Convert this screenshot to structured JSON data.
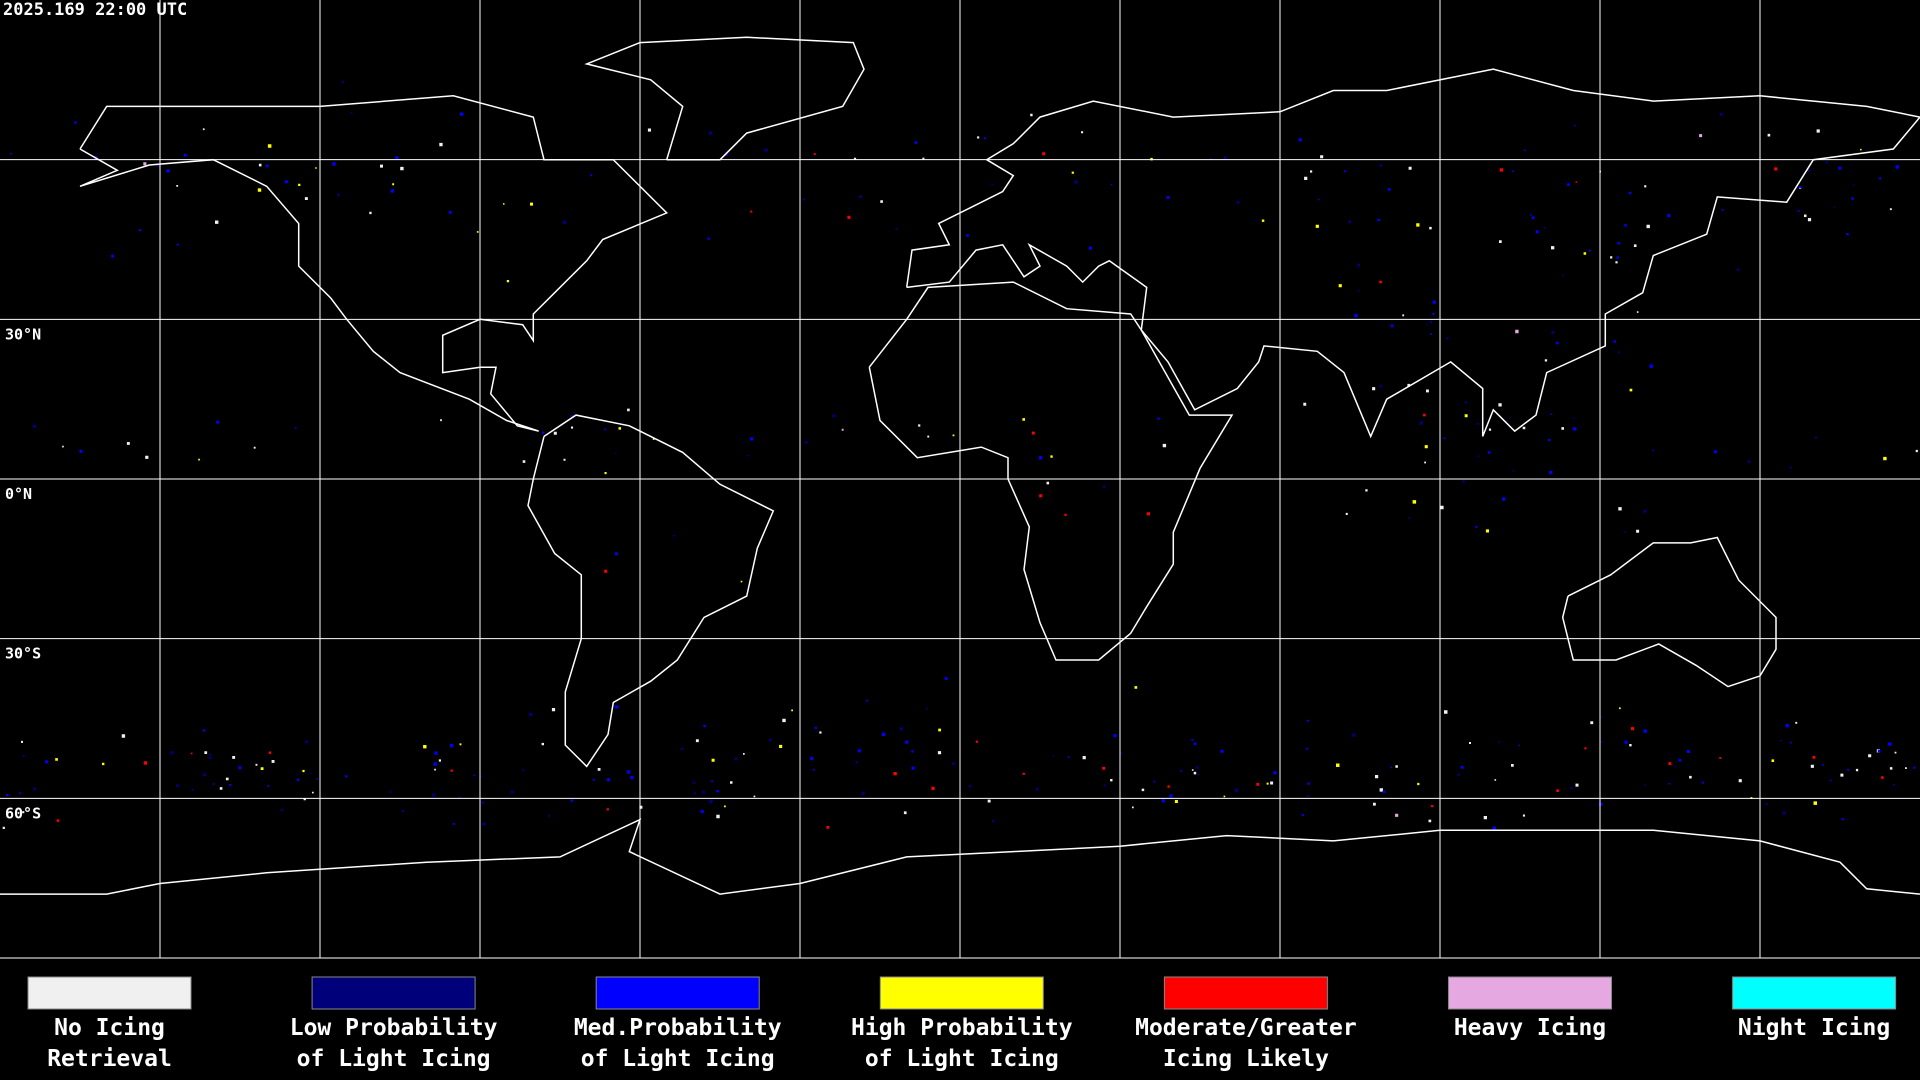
{
  "header": {
    "timestamp": "2025.169 22:00 UTC"
  },
  "map": {
    "lat_labels": [
      "30°N",
      "0°N",
      "30°S",
      "60°S"
    ]
  },
  "legend": {
    "items": [
      {
        "color": "#f0f0f0",
        "lines": [
          "No Icing",
          "Retrieval"
        ]
      },
      {
        "color": "#00007a",
        "lines": [
          "Low Probability",
          "of Light Icing"
        ]
      },
      {
        "color": "#0000ff",
        "lines": [
          "Med.Probability",
          "of Light Icing"
        ]
      },
      {
        "color": "#ffff00",
        "lines": [
          "High Probability",
          "of Light Icing"
        ]
      },
      {
        "color": "#ff0000",
        "lines": [
          "Moderate/Greater",
          "Icing Likely"
        ]
      },
      {
        "color": "#e6a8e0",
        "lines": [
          "Heavy Icing"
        ]
      },
      {
        "color": "#00ffff",
        "lines": [
          "Night Icing"
        ]
      }
    ]
  }
}
